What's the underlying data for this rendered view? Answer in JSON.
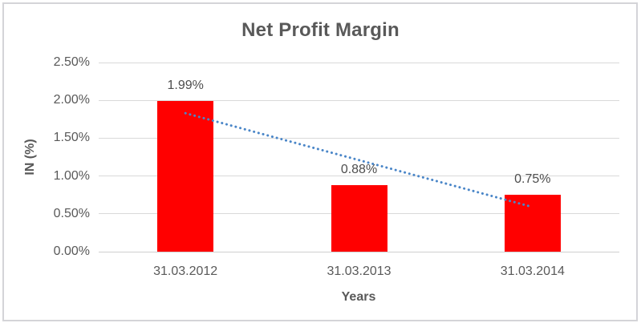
{
  "chart_data": {
    "type": "bar",
    "title": "Net Profit Margin",
    "xlabel": "Years",
    "ylabel": "IN (%)",
    "categories": [
      "31.03.2012",
      "31.03.2013",
      "31.03.2014"
    ],
    "values": [
      1.99,
      0.88,
      0.75
    ],
    "value_labels": [
      "1.99%",
      "0.88%",
      "0.75%"
    ],
    "ylim": [
      0,
      2.5
    ],
    "ytick_values": [
      0,
      0.5,
      1.0,
      1.5,
      2.0,
      2.5
    ],
    "ytick_labels": [
      "0.00%",
      "0.50%",
      "1.00%",
      "1.50%",
      "2.00%",
      "2.50%"
    ],
    "grid": true,
    "legend": "none",
    "bar_color": "#ff0000",
    "trendline": {
      "type": "linear",
      "style": "dotted",
      "color": "#4a86c8",
      "start_value": 1.83,
      "end_value": 0.59
    },
    "colors": {
      "gridline": "#d9d9d9",
      "axis_line": "#cfcfcf",
      "text": "#595959",
      "data_label": "#4d4d4d",
      "border": "#d4d4d8",
      "background": "#ffffff"
    }
  }
}
